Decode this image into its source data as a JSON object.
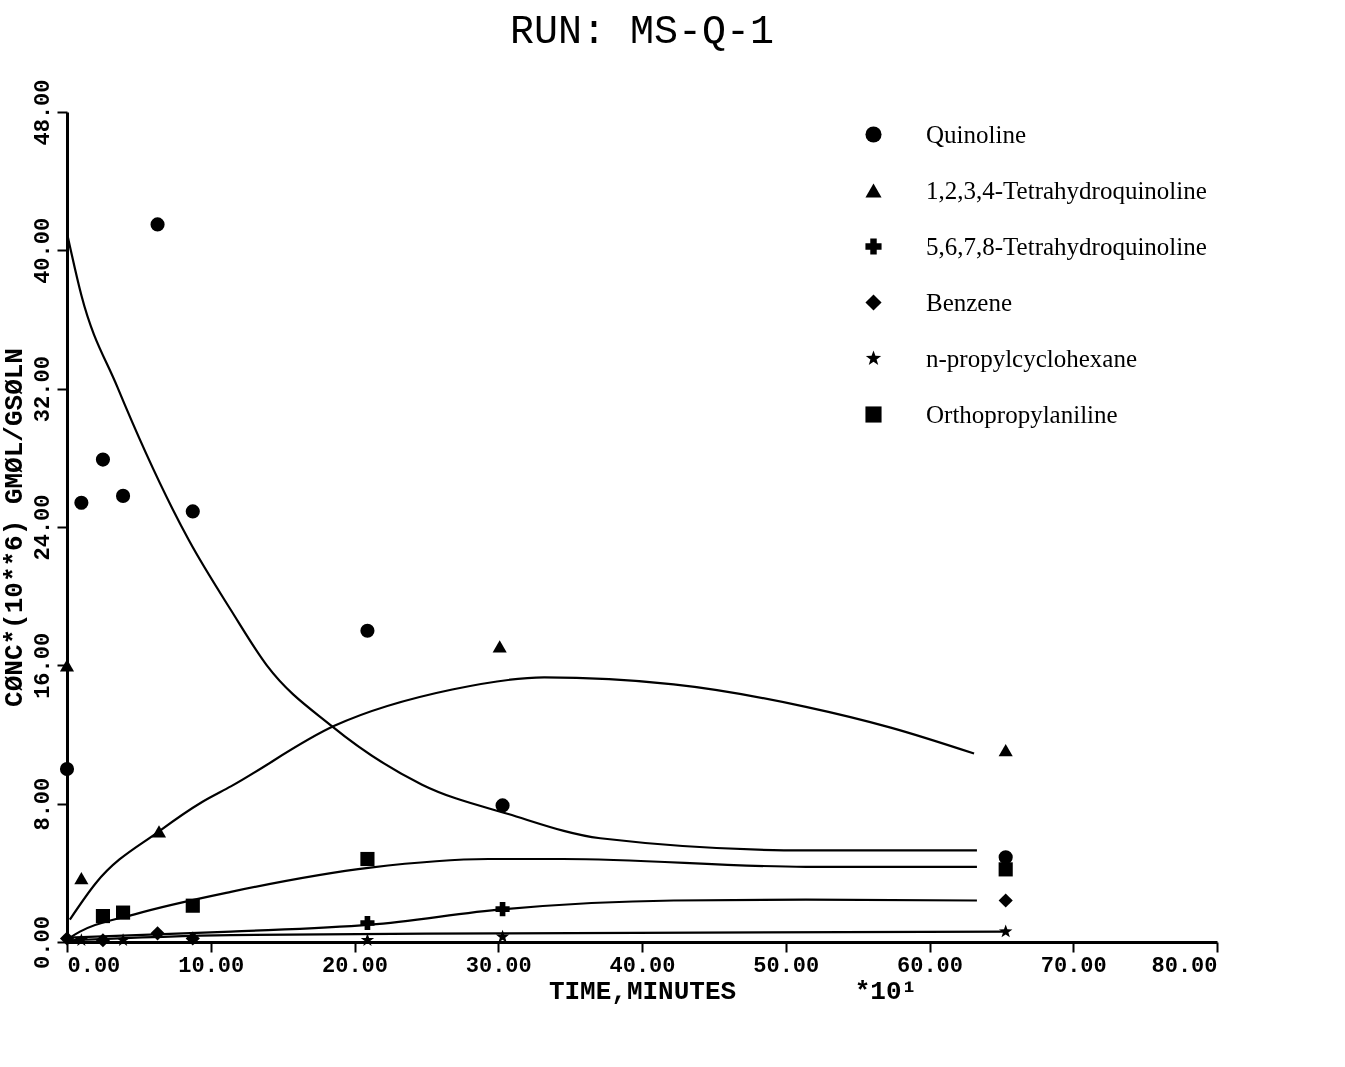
{
  "chart_data": {
    "type": "scatter",
    "title": "RUN: MS-Q-1",
    "xlabel": "TIME,MINUTES",
    "ylabel": "CØNC*(10**6) GMØL/GSØLN",
    "annotations": [
      "*10¹"
    ],
    "xlim": [
      0,
      80
    ],
    "ylim": [
      0,
      48
    ],
    "xticks": [
      {
        "value": 0,
        "label": "0.00"
      },
      {
        "value": 10,
        "label": "10.00"
      },
      {
        "value": 20,
        "label": "20.00"
      },
      {
        "value": 30,
        "label": "30.00"
      },
      {
        "value": 40,
        "label": "40.00"
      },
      {
        "value": 50,
        "label": "50.00"
      },
      {
        "value": 60,
        "label": "60.00"
      },
      {
        "value": 70,
        "label": "70.00"
      },
      {
        "value": 80,
        "label": "80.00"
      }
    ],
    "yticks": [
      {
        "value": 0,
        "label": "0.00"
      },
      {
        "value": 8,
        "label": "8.00"
      },
      {
        "value": 16,
        "label": "16.00"
      },
      {
        "value": 24,
        "label": "24.00"
      },
      {
        "value": 32,
        "label": "32.00"
      },
      {
        "value": 40,
        "label": "40.00"
      },
      {
        "value": 48,
        "label": "48.00"
      }
    ],
    "grid": false,
    "legend": "top right",
    "series": [
      {
        "name": "Quinoline",
        "marker": "circle",
        "color": "#000000",
        "x": [
          0,
          1,
          2.5,
          3.9,
          6.3,
          8.75,
          20.9,
          30.3,
          65.3
        ],
        "values": [
          10,
          25.4,
          27.9,
          25.8,
          41.5,
          24.9,
          18,
          7.9,
          4.9
        ]
      },
      {
        "name": "1,2,3,4-Tetrahydroquinoline",
        "marker": "triangle",
        "color": "#000000",
        "x": [
          0,
          1,
          6.4,
          30.1,
          65.3
        ],
        "values": [
          16,
          3.7,
          6.4,
          17.1,
          11.1
        ]
      },
      {
        "name": "5,6,7,8-Tetrahydroquinoline",
        "marker": "cross",
        "color": "#000000",
        "x": [
          20.9,
          30.3
        ],
        "values": [
          1.1,
          1.9
        ]
      },
      {
        "name": "Benzene",
        "marker": "diamond",
        "color": "#000000",
        "x": [
          0,
          2.5,
          6.3,
          8.75,
          65.3
        ],
        "values": [
          0.2,
          0.1,
          0.5,
          0.2,
          2.4
        ]
      },
      {
        "name": "n-propylcyclohexane",
        "marker": "star",
        "color": "#000000",
        "x": [
          1,
          3.9,
          20.9,
          30.3,
          65.3
        ],
        "values": [
          0.1,
          0.1,
          0.1,
          0.3,
          0.6
        ]
      },
      {
        "name": "Orthopropylaniline",
        "marker": "square",
        "color": "#000000",
        "x": [
          2.5,
          3.9,
          8.75,
          20.9,
          65.3
        ],
        "values": [
          1.5,
          1.7,
          2.1,
          4.8,
          4.2
        ]
      },
      {
        "type": "line",
        "marker": "none",
        "color": "#000000",
        "x": [
          0,
          1,
          3.5,
          8.5,
          11.4,
          13.9,
          18.4,
          24.7,
          30.7,
          37.1,
          51.4,
          63.3
        ],
        "values": [
          41,
          37.4,
          32.1,
          23.2,
          19.2,
          16,
          12.5,
          9.1,
          7.4,
          6,
          5.3,
          5.3
        ]
      },
      {
        "type": "line",
        "marker": "none",
        "color": "#000000",
        "x": [
          0.2,
          2,
          6.4,
          9.4,
          11.4,
          18.6,
          26.8,
          33.2,
          42.2,
          51.4,
          57.3,
          63.1
        ],
        "values": [
          1.3,
          3.4,
          6.4,
          8.1,
          9,
          12.5,
          14.6,
          15.3,
          14.9,
          13.6,
          12.4,
          10.9
        ]
      },
      {
        "type": "line",
        "marker": "none",
        "color": "#000000",
        "x": [
          0.1,
          0.9,
          4.7,
          11.4,
          21.1,
          29.3,
          34.5,
          51.4,
          63.3
        ],
        "values": [
          0.2,
          0.6,
          1.6,
          2.9,
          4.3,
          4.8,
          4.8,
          4.35,
          4.35
        ]
      },
      {
        "type": "line",
        "marker": "none",
        "color": "#000000",
        "x": [
          0.1,
          11.4,
          21.1,
          30.4,
          42.2,
          51.4,
          63.3
        ],
        "values": [
          0.25,
          0.6,
          1,
          1.9,
          2.4,
          2.45,
          2.4
        ]
      },
      {
        "type": "line",
        "marker": "none",
        "color": "#000000",
        "x": [
          0.1,
          11.4,
          30,
          65.3
        ],
        "values": [
          0.1,
          0.4,
          0.5,
          0.6
        ]
      }
    ]
  }
}
